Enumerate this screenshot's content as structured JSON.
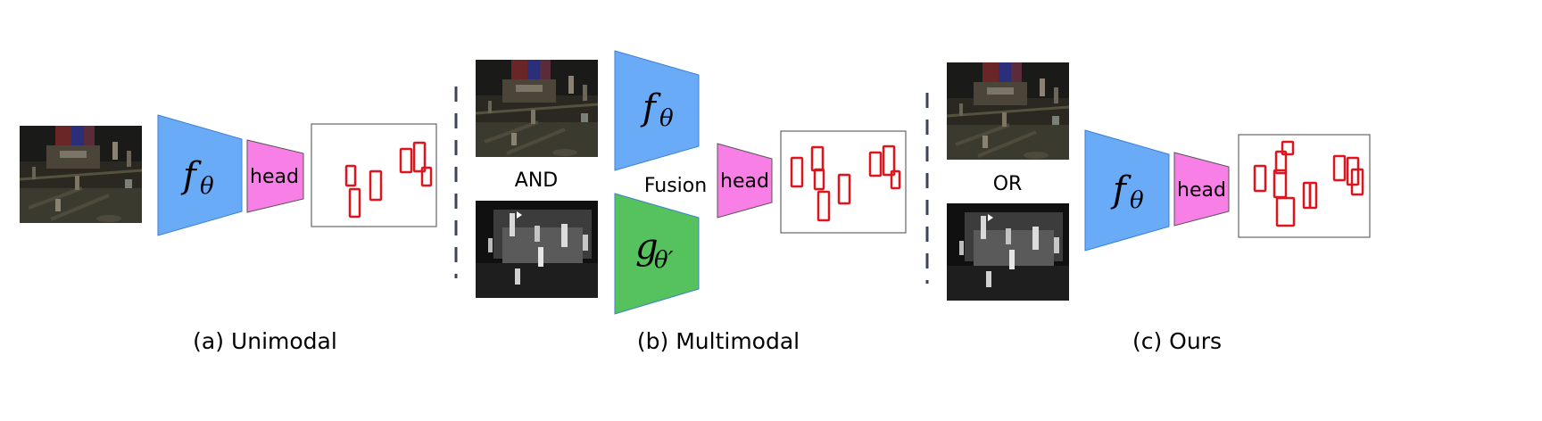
{
  "panels": {
    "unimodal": {
      "caption": "(a) Unimodal",
      "encoder_symbol": "f",
      "encoder_sub": "θ",
      "head_label": "head",
      "colors": {
        "encoder": "#6AABF8",
        "head": "#F77FE6",
        "box": "#E0141C"
      }
    },
    "multimodal": {
      "caption": "(b) Multimodal",
      "connector": "AND",
      "fusion_label": "Fusion",
      "encoder_rgb_symbol": "f",
      "encoder_rgb_sub": "θ",
      "encoder_ir_symbol": "g",
      "encoder_ir_sub": "θ′",
      "head_label": "head",
      "colors": {
        "encoder_rgb": "#6AABF8",
        "encoder_ir": "#55C25E",
        "head": "#F77FE6",
        "box": "#E0141C"
      }
    },
    "ours": {
      "caption": "(c) Ours",
      "connector": "OR",
      "encoder_symbol": "f",
      "encoder_sub": "θ",
      "head_label": "head",
      "colors": {
        "encoder": "#6AABF8",
        "head": "#F77FE6",
        "box": "#E0141C"
      }
    }
  },
  "icons": {
    "rgb_image": "night-street-rgb-image-icon",
    "thermal_image": "night-street-thermal-image-icon",
    "separator": "dashed-separator"
  }
}
